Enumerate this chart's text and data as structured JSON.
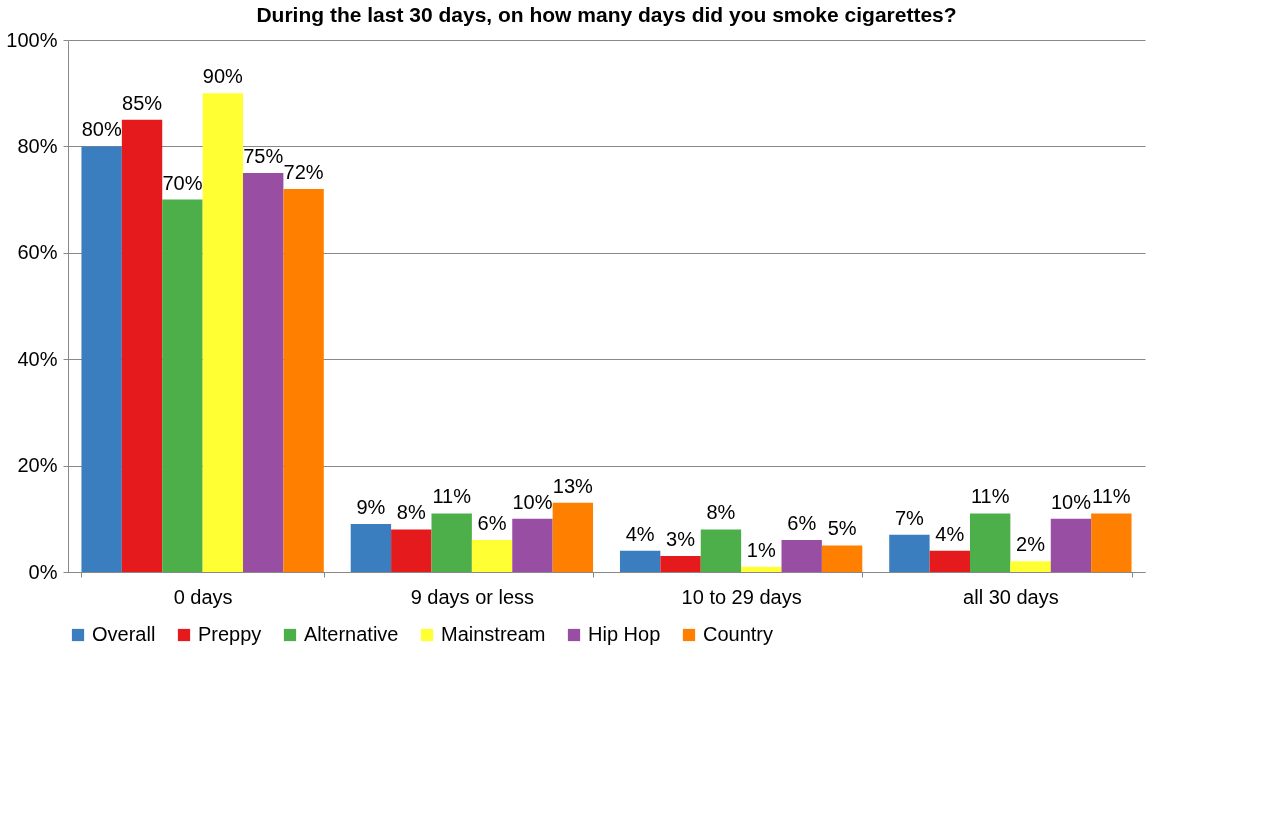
{
  "chart_data": {
    "type": "bar",
    "title": "During the last 30 days, on how many days did you smoke cigarettes?",
    "categories": [
      "0 days",
      "9 days or less",
      "10 to 29 days",
      "all 30 days"
    ],
    "series": [
      {
        "name": "Overall",
        "color": "#3a7ebf",
        "values": [
          80,
          9,
          4,
          7
        ],
        "value_labels": [
          "80%",
          "9%",
          "4%",
          "7%"
        ]
      },
      {
        "name": "Preppy",
        "color": "#e41a1c",
        "values": [
          85,
          8,
          3,
          4
        ],
        "value_labels": [
          "85%",
          "8%",
          "3%",
          "4%"
        ]
      },
      {
        "name": "Alternative",
        "color": "#4daf4a",
        "values": [
          70,
          11,
          8,
          11
        ],
        "value_labels": [
          "70%",
          "11%",
          "8%",
          "11%"
        ]
      },
      {
        "name": "Mainstream",
        "color": "#ffff33",
        "values": [
          90,
          6,
          1,
          2
        ],
        "value_labels": [
          "90%",
          "6%",
          "1%",
          "2%"
        ]
      },
      {
        "name": "Hip Hop",
        "color": "#984ea3",
        "values": [
          75,
          10,
          6,
          10
        ],
        "value_labels": [
          "75%",
          "10%",
          "6%",
          "10%"
        ]
      },
      {
        "name": "Country",
        "color": "#ff7f00",
        "values": [
          72,
          13,
          5,
          11
        ],
        "value_labels": [
          "72%",
          "13%",
          "5%",
          "11%"
        ]
      }
    ],
    "ylim": [
      0,
      100
    ],
    "yticks": [
      {
        "value": 0,
        "label": "0%"
      },
      {
        "value": 20,
        "label": "20%"
      },
      {
        "value": 40,
        "label": "40%"
      },
      {
        "value": 60,
        "label": "60%"
      },
      {
        "value": 80,
        "label": "80%"
      },
      {
        "value": 100,
        "label": "100%"
      }
    ],
    "grid": "y",
    "legend": "bottom"
  }
}
